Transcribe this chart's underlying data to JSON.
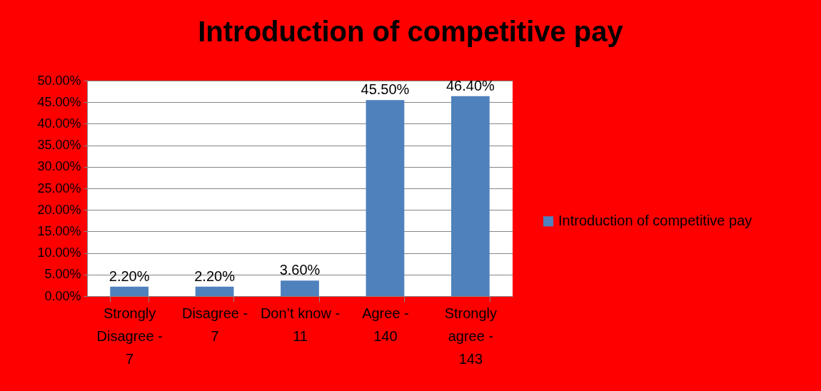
{
  "chart_data": {
    "type": "bar",
    "title": "Introduction of competitive pay",
    "categories": [
      "Strongly Disagree - 7",
      "Disagree - 7",
      "Don’t know - 11",
      "Agree - 140",
      "Strongly agree - 143"
    ],
    "series": [
      {
        "name": "Introduction of competitive pay",
        "color": "#4f81bd",
        "values": [
          2.2,
          2.2,
          3.6,
          45.5,
          46.4
        ],
        "value_labels": [
          "2.20%",
          "2.20%",
          "3.60%",
          "45.50%",
          "46.40%"
        ]
      }
    ],
    "ylim": [
      0,
      50
    ],
    "yticks": [
      {
        "value": 0,
        "label": "0.00%"
      },
      {
        "value": 5,
        "label": "5.00%"
      },
      {
        "value": 10,
        "label": "10.00%"
      },
      {
        "value": 15,
        "label": "15.00%"
      },
      {
        "value": 20,
        "label": "20.00%"
      },
      {
        "value": 25,
        "label": "25.00%"
      },
      {
        "value": 30,
        "label": "30.00%"
      },
      {
        "value": 35,
        "label": "35.00%"
      },
      {
        "value": 40,
        "label": "40.00%"
      },
      {
        "value": 45,
        "label": "45.00%"
      },
      {
        "value": 50,
        "label": "50.00%"
      }
    ],
    "grid": true,
    "legend": "right"
  }
}
